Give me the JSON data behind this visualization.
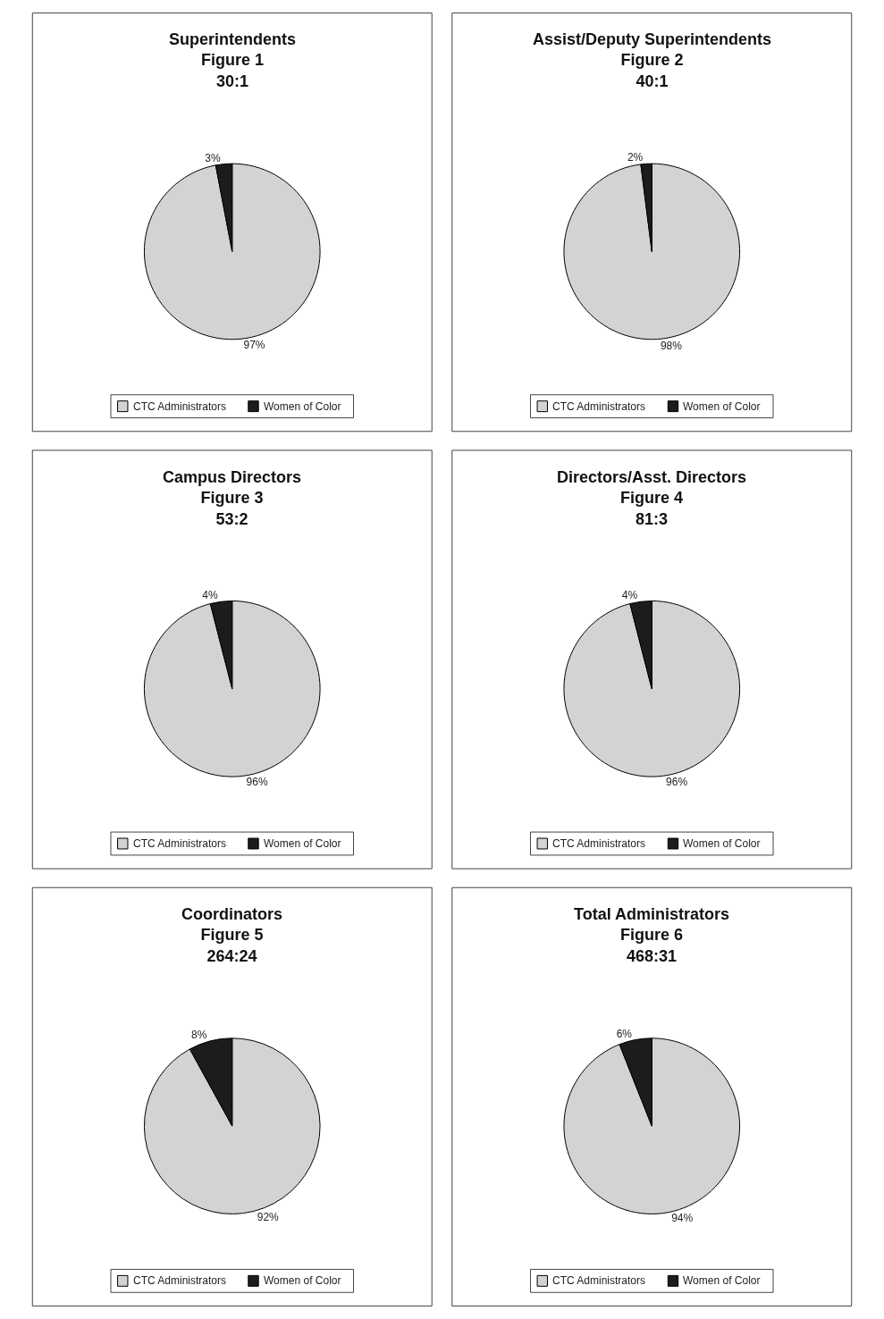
{
  "chart_data": [
    {
      "type": "pie",
      "title": "Superintendents\nFigure 1\n30:1",
      "categories": [
        "CTC Administrators",
        "Women of Color"
      ],
      "values": [
        97,
        3
      ],
      "value_labels": [
        "97%",
        "3%"
      ],
      "colors": [
        "#d3d3d3",
        "#1c1c1c"
      ],
      "legend": "bottom"
    },
    {
      "type": "pie",
      "title": "Assist/Deputy Superintendents\nFigure 2\n40:1",
      "categories": [
        "CTC Administrators",
        "Women of Color"
      ],
      "values": [
        98,
        2
      ],
      "value_labels": [
        "98%",
        "2%"
      ],
      "colors": [
        "#d3d3d3",
        "#1c1c1c"
      ],
      "legend": "bottom"
    },
    {
      "type": "pie",
      "title": "Campus Directors\nFigure 3\n53:2",
      "categories": [
        "CTC Administrators",
        "Women of Color"
      ],
      "values": [
        96,
        4
      ],
      "value_labels": [
        "96%",
        "4%"
      ],
      "colors": [
        "#d3d3d3",
        "#1c1c1c"
      ],
      "legend": "bottom"
    },
    {
      "type": "pie",
      "title": "Directors/Asst. Directors\nFigure 4\n81:3",
      "categories": [
        "CTC Administrators",
        "Women of Color"
      ],
      "values": [
        96,
        4
      ],
      "value_labels": [
        "96%",
        "4%"
      ],
      "colors": [
        "#d3d3d3",
        "#1c1c1c"
      ],
      "legend": "bottom"
    },
    {
      "type": "pie",
      "title": "Coordinators\nFigure 5\n264:24",
      "categories": [
        "CTC Administrators",
        "Women of Color"
      ],
      "values": [
        92,
        8
      ],
      "value_labels": [
        "92%",
        "8%"
      ],
      "colors": [
        "#d3d3d3",
        "#1c1c1c"
      ],
      "legend": "bottom"
    },
    {
      "type": "pie",
      "title": "Total Administrators\nFigure 6\n468:31",
      "categories": [
        "CTC Administrators",
        "Women of Color"
      ],
      "values": [
        94,
        6
      ],
      "value_labels": [
        "94%",
        "6%"
      ],
      "colors": [
        "#d3d3d3",
        "#1c1c1c"
      ],
      "legend": "bottom"
    }
  ]
}
